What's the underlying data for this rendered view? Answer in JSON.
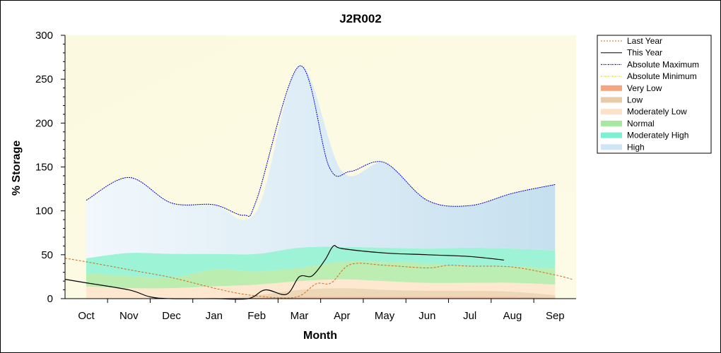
{
  "chart_data": {
    "type": "area",
    "title": "J2R002",
    "xlabel": "Month",
    "ylabel": "% Storage",
    "ylim": [
      0,
      300
    ],
    "yticks": [
      "0",
      "50",
      "100",
      "150",
      "200",
      "250",
      "300"
    ],
    "ytick_values": [
      0,
      50,
      100,
      150,
      200,
      250,
      300
    ],
    "categories": [
      "Oct",
      "Nov",
      "Dec",
      "Jan",
      "Feb",
      "Mar",
      "Apr",
      "May",
      "Jun",
      "Jul",
      "Aug",
      "Sep"
    ],
    "grid": false,
    "legend_position": "right",
    "series": [
      {
        "name": "Last Year",
        "style": "dashed",
        "color": "#d2691e",
        "x": [
          -0.5,
          0,
          1,
          2,
          3,
          3.7,
          4.5,
          5,
          5.4,
          5.75,
          6.2,
          7,
          8,
          8.5,
          9,
          10,
          11,
          11.4
        ],
        "y": [
          46,
          42,
          33,
          24,
          12,
          5,
          1,
          3,
          17,
          18,
          39,
          38,
          35,
          38,
          37,
          36,
          27,
          22
        ]
      },
      {
        "name": "This Year",
        "style": "solid",
        "color": "#000000",
        "x": [
          -0.5,
          0,
          1,
          1.5,
          2,
          3,
          3.8,
          4.2,
          4.7,
          5,
          5.3,
          5.6,
          5.8,
          6,
          7,
          8,
          9,
          9.8
        ],
        "y": [
          22,
          18,
          10,
          2,
          0,
          0,
          0,
          10,
          5,
          25,
          26,
          44,
          60,
          57,
          52,
          50,
          48,
          44
        ]
      },
      {
        "name": "Absolute Maximum",
        "style": "dotted",
        "color": "#0000cd",
        "x": [
          0,
          1,
          2,
          3,
          3.7,
          4,
          5,
          5.7,
          6.2,
          7,
          8,
          9,
          10,
          11
        ],
        "y": [
          112,
          138,
          109,
          107,
          95,
          113,
          265,
          150,
          145,
          155,
          112,
          106,
          120,
          130
        ]
      },
      {
        "name": "Absolute Minimum",
        "style": "dotted",
        "color": "#e6d800",
        "x": [
          0,
          11
        ],
        "y": [
          0,
          0
        ]
      }
    ],
    "bands": [
      {
        "name": "Very Low",
        "color": "#f4a582",
        "lower": [
          0,
          0,
          0,
          0,
          0,
          0,
          0,
          0,
          0,
          0,
          0,
          0
        ],
        "upper": [
          0,
          0,
          0,
          0,
          1,
          2,
          2,
          2,
          2,
          2,
          2,
          1
        ]
      },
      {
        "name": "Low",
        "color": "#e8cba8",
        "lower": [
          0,
          0,
          0,
          0,
          1,
          2,
          2,
          2,
          2,
          2,
          2,
          1
        ],
        "upper": [
          0,
          0,
          0,
          0,
          4,
          10,
          12,
          10,
          9,
          9,
          8,
          4
        ]
      },
      {
        "name": "Moderately Low",
        "color": "#fde1c8",
        "lower": [
          0,
          0,
          0,
          0,
          4,
          10,
          12,
          10,
          9,
          9,
          8,
          4
        ],
        "upper": [
          14,
          12,
          12,
          14,
          16,
          20,
          22,
          20,
          18,
          18,
          18,
          16
        ]
      },
      {
        "name": "Normal",
        "color": "#a6e8a0",
        "lower": [
          14,
          12,
          12,
          14,
          16,
          20,
          22,
          20,
          18,
          18,
          18,
          16
        ],
        "upper": [
          29,
          26,
          24,
          33,
          31,
          35,
          42,
          42,
          40,
          37,
          37,
          34
        ]
      },
      {
        "name": "Moderately High",
        "color": "#7ef0d2",
        "lower": [
          29,
          26,
          24,
          33,
          31,
          35,
          42,
          42,
          40,
          37,
          37,
          34
        ],
        "upper": [
          46,
          52,
          51,
          51,
          51,
          58,
          59,
          58,
          57,
          58,
          57,
          55
        ]
      },
      {
        "name": "High",
        "color": "#cfe4f4",
        "lower": [
          46,
          52,
          51,
          51,
          51,
          58,
          59,
          58,
          57,
          58,
          57,
          55
        ],
        "upper": [
          112,
          138,
          109,
          107,
          100,
          265,
          145,
          155,
          112,
          106,
          120,
          130
        ]
      }
    ],
    "legend": [
      {
        "label": "Last Year",
        "kind": "line",
        "color": "#d2691e",
        "dash": "2,2"
      },
      {
        "label": "This Year",
        "kind": "line",
        "color": "#000000",
        "dash": ""
      },
      {
        "label": "Absolute Maximum",
        "kind": "line",
        "color": "#0000cd",
        "dash": "2,1,1,1"
      },
      {
        "label": "Absolute Minimum",
        "kind": "line",
        "color": "#e6d800",
        "dash": "2,1,1,1"
      },
      {
        "label": "Very Low",
        "kind": "fill",
        "color": "#f4a582"
      },
      {
        "label": "Low",
        "kind": "fill",
        "color": "#e8cba8"
      },
      {
        "label": "Moderately Low",
        "kind": "fill",
        "color": "#fde1c8"
      },
      {
        "label": "Normal",
        "kind": "fill",
        "color": "#a6e8a0"
      },
      {
        "label": "Moderately High",
        "kind": "fill",
        "color": "#7ef0d2"
      },
      {
        "label": "High",
        "kind": "fill",
        "color": "#cfe4f4"
      }
    ]
  }
}
